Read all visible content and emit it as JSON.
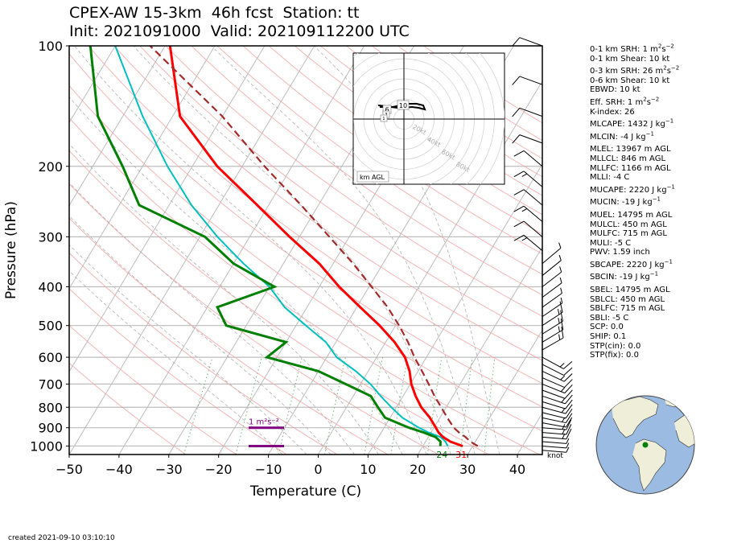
{
  "title": {
    "line1": "CPEX-AW 15-3km  46h fcst  Station: tt",
    "line2": "Init: 2021091000  Valid: 202109112200 UTC"
  },
  "footer": {
    "created": "created 2021-09-10 03:10:10"
  },
  "chart_data": {
    "type": "line",
    "ylabel": "Pressure (hPa)",
    "xlabel": "Temperature (C)",
    "yscale": "log",
    "ylim": [
      1050,
      100
    ],
    "xlim": [
      -50,
      45
    ],
    "yticks": [
      100,
      200,
      300,
      400,
      500,
      600,
      700,
      800,
      900,
      1000
    ],
    "xticks": [
      -50,
      -40,
      -30,
      -20,
      -10,
      0,
      10,
      20,
      30,
      40
    ],
    "skew": "skew-T log-p",
    "colors": {
      "temperature": "#ff0000",
      "dewpoint": "#008000",
      "wetbulb": "#00bfbf",
      "parcel": "#a52a2a",
      "srh": "#800080"
    },
    "series": [
      {
        "key": "temperature",
        "points": [
          [
            1000,
            28
          ],
          [
            975,
            25
          ],
          [
            950,
            23
          ],
          [
            925,
            21.5
          ],
          [
            900,
            20.4
          ],
          [
            850,
            18
          ],
          [
            800,
            15
          ],
          [
            750,
            12.5
          ],
          [
            700,
            10.2
          ],
          [
            650,
            8.3
          ],
          [
            600,
            5.7
          ],
          [
            550,
            1.8
          ],
          [
            500,
            -3.2
          ],
          [
            450,
            -9.3
          ],
          [
            400,
            -16
          ],
          [
            350,
            -22.8
          ],
          [
            300,
            -32
          ],
          [
            250,
            -42.3
          ],
          [
            200,
            -55
          ],
          [
            150,
            -68.5
          ],
          [
            100,
            -79
          ]
        ]
      },
      {
        "key": "dewpoint",
        "points": [
          [
            1000,
            23.5
          ],
          [
            975,
            23
          ],
          [
            950,
            21.5
          ],
          [
            925,
            18.5
          ],
          [
            900,
            15
          ],
          [
            850,
            9
          ],
          [
            800,
            6.3
          ],
          [
            750,
            3.5
          ],
          [
            700,
            -3
          ],
          [
            650,
            -10
          ],
          [
            600,
            -22
          ],
          [
            550,
            -20
          ],
          [
            500,
            -34
          ],
          [
            450,
            -38
          ],
          [
            400,
            -29
          ],
          [
            350,
            -40
          ],
          [
            300,
            -49
          ],
          [
            250,
            -66
          ],
          [
            200,
            -74
          ],
          [
            150,
            -85
          ],
          [
            100,
            -95
          ]
        ]
      },
      {
        "key": "wetbulb",
        "points": [
          [
            1000,
            25
          ],
          [
            975,
            24
          ],
          [
            950,
            22.5
          ],
          [
            925,
            19.5
          ],
          [
            900,
            17
          ],
          [
            850,
            12.5
          ],
          [
            800,
            9
          ],
          [
            750,
            5.5
          ],
          [
            700,
            2
          ],
          [
            650,
            -2.5
          ],
          [
            600,
            -8
          ],
          [
            550,
            -12
          ],
          [
            500,
            -18
          ],
          [
            450,
            -24.5
          ],
          [
            400,
            -30
          ],
          [
            350,
            -38
          ],
          [
            300,
            -46.5
          ],
          [
            250,
            -55.5
          ],
          [
            200,
            -65
          ],
          [
            150,
            -76
          ],
          [
            100,
            -90
          ]
        ]
      },
      {
        "key": "parcel",
        "points": [
          [
            1000,
            31
          ],
          [
            975,
            29
          ],
          [
            950,
            27.5
          ],
          [
            925,
            25.6
          ],
          [
            900,
            24
          ],
          [
            850,
            21.5
          ],
          [
            800,
            19
          ],
          [
            750,
            16.3
          ],
          [
            700,
            13.7
          ],
          [
            650,
            10.8
          ],
          [
            600,
            7.6
          ],
          [
            550,
            4.5
          ],
          [
            500,
            0.7
          ],
          [
            450,
            -3.8
          ],
          [
            400,
            -9.5
          ],
          [
            350,
            -16
          ],
          [
            300,
            -24
          ],
          [
            250,
            -33.5
          ],
          [
            200,
            -45.5
          ],
          [
            150,
            -60
          ],
          [
            100,
            -83
          ]
        ]
      }
    ],
    "surface_labels": {
      "dewpoint": "24",
      "temperature": "31"
    },
    "srh_label": "1 m²s⁻²",
    "srh_bars": [
      900,
      1000
    ],
    "wind_unit": "knot",
    "hodograph": {
      "rings": [
        "20kt",
        "40kt",
        "60kt",
        "80kt"
      ],
      "height_labels": [
        "10",
        "6",
        "3",
        "1"
      ],
      "box_label": "km AGL"
    }
  },
  "indices": [
    {
      "pre": "0-1 km SRH: 1 m",
      "sup": "2",
      "post": "s",
      "sup2": "−2"
    },
    {
      "pre": "0-1 km Shear: 10 kt"
    },
    {
      "pre": "0-3 km SRH: 26 m",
      "sup": "2",
      "post": "s",
      "sup2": "−2",
      "gap": true
    },
    {
      "pre": "0-6 km Shear: 10 kt"
    },
    {
      "pre": "EBWD: 10 kt"
    },
    {
      "pre": "Eff. SRH: 1 m",
      "sup": "2",
      "post": "s",
      "sup2": "−2",
      "gap": true
    },
    {
      "pre": "K-index: 26"
    },
    {
      "pre": "MLCAPE: 1432 J kg",
      "sup": "−1",
      "gap": true
    },
    {
      "pre": "MLCIN: -4 J kg",
      "sup": "−1",
      "gap": true
    },
    {
      "pre": "MLEL: 13967 m AGL",
      "gap": true
    },
    {
      "pre": "MLLCL: 846 m AGL"
    },
    {
      "pre": "MLLFC: 1166 m AGL"
    },
    {
      "pre": "MLLI: -4 C"
    },
    {
      "pre": "MUCAPE: 2220 J kg",
      "sup": "−1",
      "gap": true
    },
    {
      "pre": "MUCIN: -19 J kg",
      "sup": "−1",
      "gap": true
    },
    {
      "pre": "MUEL: 14795 m AGL",
      "gap": true
    },
    {
      "pre": "MULCL: 450 m AGL"
    },
    {
      "pre": "MULFC: 715 m AGL"
    },
    {
      "pre": "MULI: -5 C"
    },
    {
      "pre": "PWV: 1.59 inch"
    },
    {
      "pre": "SBCAPE: 2220 J kg",
      "sup": "−1",
      "gap": true
    },
    {
      "pre": "SBCIN: -19 J kg",
      "sup": "−1",
      "gap": true
    },
    {
      "pre": "SBEL: 14795 m AGL",
      "gap": true
    },
    {
      "pre": "SBLCL: 450 m AGL"
    },
    {
      "pre": "SBLFC: 715 m AGL"
    },
    {
      "pre": "SBLI: -5 C"
    },
    {
      "pre": "SCP: 0.0"
    },
    {
      "pre": "SHIP: 0.1"
    },
    {
      "pre": "STP(cin): 0.0"
    },
    {
      "pre": "STP(fix): 0.0"
    }
  ]
}
